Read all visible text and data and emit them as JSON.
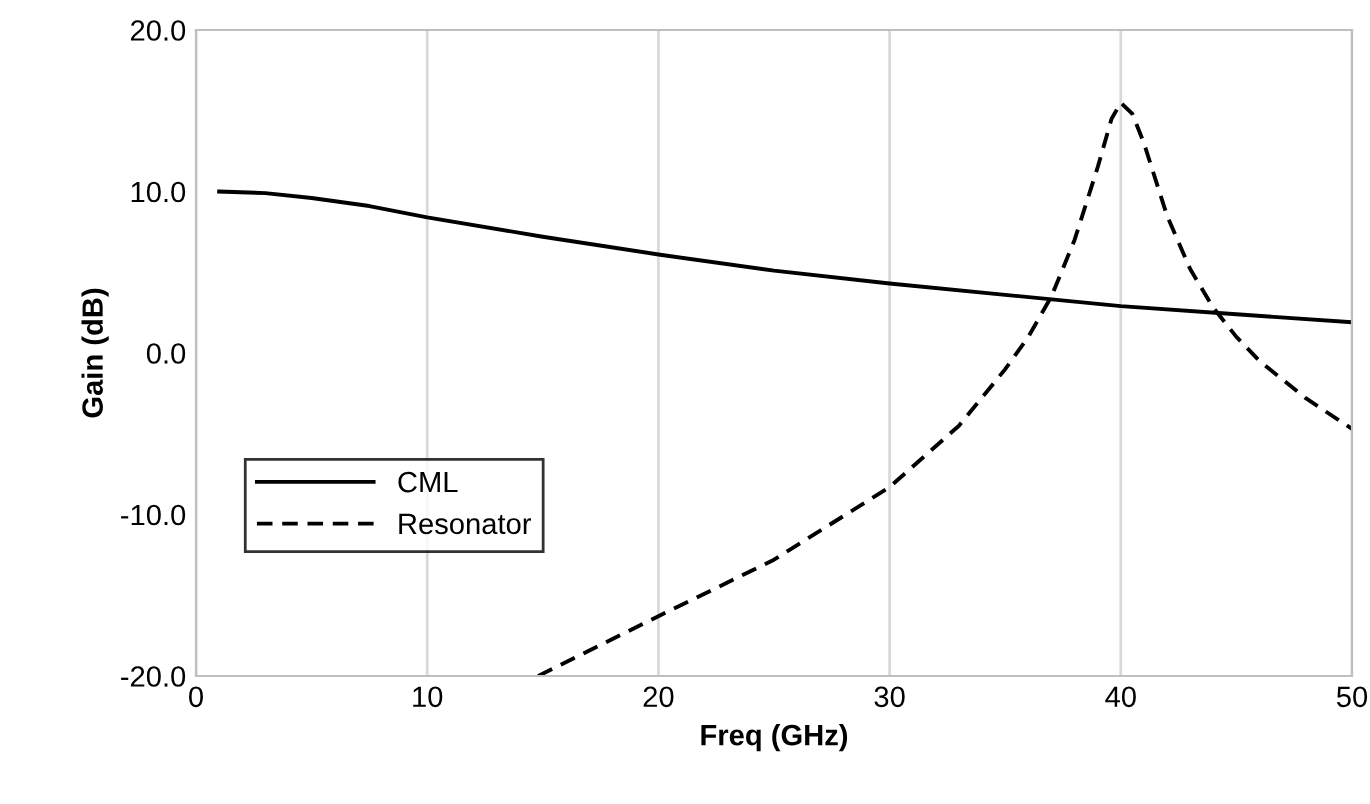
{
  "chart_data": {
    "type": "line",
    "xlabel": "Freq (GHz)",
    "ylabel": "Gain (dB)",
    "xlim": [
      0,
      50
    ],
    "xticks": [
      0,
      10,
      20,
      30,
      40,
      50
    ],
    "ylim": [
      -20,
      20
    ],
    "yticks": [
      {
        "value": -20,
        "label": "-20.0"
      },
      {
        "value": -10,
        "label": "-10.0"
      },
      {
        "value": 0,
        "label": "0.0"
      },
      {
        "value": 10,
        "label": "10.0"
      },
      {
        "value": 20,
        "label": "20.0"
      }
    ],
    "grid": "x",
    "legend": "bottom left",
    "series": [
      {
        "name": "CML",
        "color": "#000000",
        "line_style": "solid",
        "x": [
          1,
          3,
          5,
          7.5,
          10,
          15,
          20,
          25,
          30,
          35,
          40,
          45,
          50
        ],
        "values": [
          10.0,
          9.9,
          9.6,
          9.1,
          8.4,
          7.2,
          6.1,
          5.1,
          4.3,
          3.6,
          2.9,
          2.4,
          1.9
        ]
      },
      {
        "name": "Resonator",
        "color": "#000000",
        "line_style": "dashed",
        "x": [
          14.8,
          20,
          25,
          30,
          33,
          35,
          36,
          37,
          38,
          39,
          39.6,
          40,
          40.5,
          41,
          42,
          43,
          44,
          45,
          46,
          48,
          50
        ],
        "values": [
          -20,
          -16.3,
          -12.8,
          -8.3,
          -4.5,
          -1.0,
          1.0,
          3.5,
          7.0,
          11.5,
          14.5,
          15.5,
          14.8,
          13.0,
          8.5,
          5.2,
          2.8,
          1.0,
          -0.5,
          -2.8,
          -4.7
        ]
      }
    ]
  }
}
